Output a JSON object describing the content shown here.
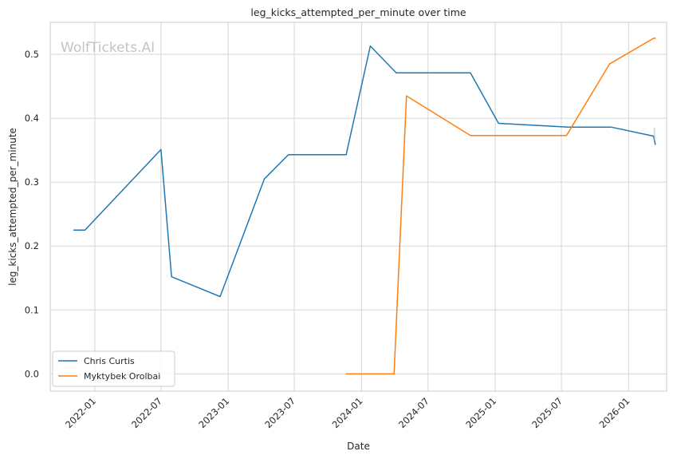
{
  "chart_data": {
    "type": "line",
    "title": "leg_kicks_attempted_per_minute over time",
    "xlabel": "Date",
    "ylabel": "leg_kicks_attempted_per_minute",
    "watermark": "WolfTickets.AI",
    "x_axis_type": "date",
    "xlim": [
      "2021-09-01",
      "2026-04-15"
    ],
    "ylim": [
      -0.027,
      0.55
    ],
    "x_ticks": [
      "2022-01",
      "2022-07",
      "2023-01",
      "2023-07",
      "2024-01",
      "2024-07",
      "2025-01",
      "2025-07",
      "2026-01"
    ],
    "y_ticks": [
      0.0,
      0.1,
      0.2,
      0.3,
      0.4,
      0.5
    ],
    "y_tick_labels": [
      "0.0",
      "0.1",
      "0.2",
      "0.3",
      "0.4",
      "0.5"
    ],
    "grid": true,
    "legend_position": "lower-left",
    "series": [
      {
        "name": "Chris Curtis",
        "color": "#1f77b4",
        "points": [
          {
            "x": "2021-11-05",
            "y": 0.225
          },
          {
            "x": "2021-12-05",
            "y": 0.225
          },
          {
            "x": "2022-07-01",
            "y": 0.351
          },
          {
            "x": "2022-07-30",
            "y": 0.152
          },
          {
            "x": "2022-12-10",
            "y": 0.121
          },
          {
            "x": "2023-04-10",
            "y": 0.305
          },
          {
            "x": "2023-06-15",
            "y": 0.343
          },
          {
            "x": "2023-11-20",
            "y": 0.343
          },
          {
            "x": "2024-01-25",
            "y": 0.513
          },
          {
            "x": "2024-04-05",
            "y": 0.471
          },
          {
            "x": "2024-10-25",
            "y": 0.471
          },
          {
            "x": "2025-01-10",
            "y": 0.392
          },
          {
            "x": "2025-07-20",
            "y": 0.386
          },
          {
            "x": "2025-11-15",
            "y": 0.386
          },
          {
            "x": "2026-03-10",
            "y": 0.372
          },
          {
            "x": "2026-03-15",
            "y": 0.359
          }
        ]
      },
      {
        "name": "Myktybek Orolbai",
        "color": "#ff7f0e",
        "points": [
          {
            "x": "2023-11-20",
            "y": 0.0
          },
          {
            "x": "2024-03-30",
            "y": 0.0
          },
          {
            "x": "2024-05-03",
            "y": 0.435
          },
          {
            "x": "2024-10-25",
            "y": 0.373
          },
          {
            "x": "2025-07-15",
            "y": 0.373
          },
          {
            "x": "2025-11-10",
            "y": 0.485
          },
          {
            "x": "2026-03-10",
            "y": 0.525
          },
          {
            "x": "2026-03-15",
            "y": 0.525
          }
        ]
      }
    ]
  }
}
